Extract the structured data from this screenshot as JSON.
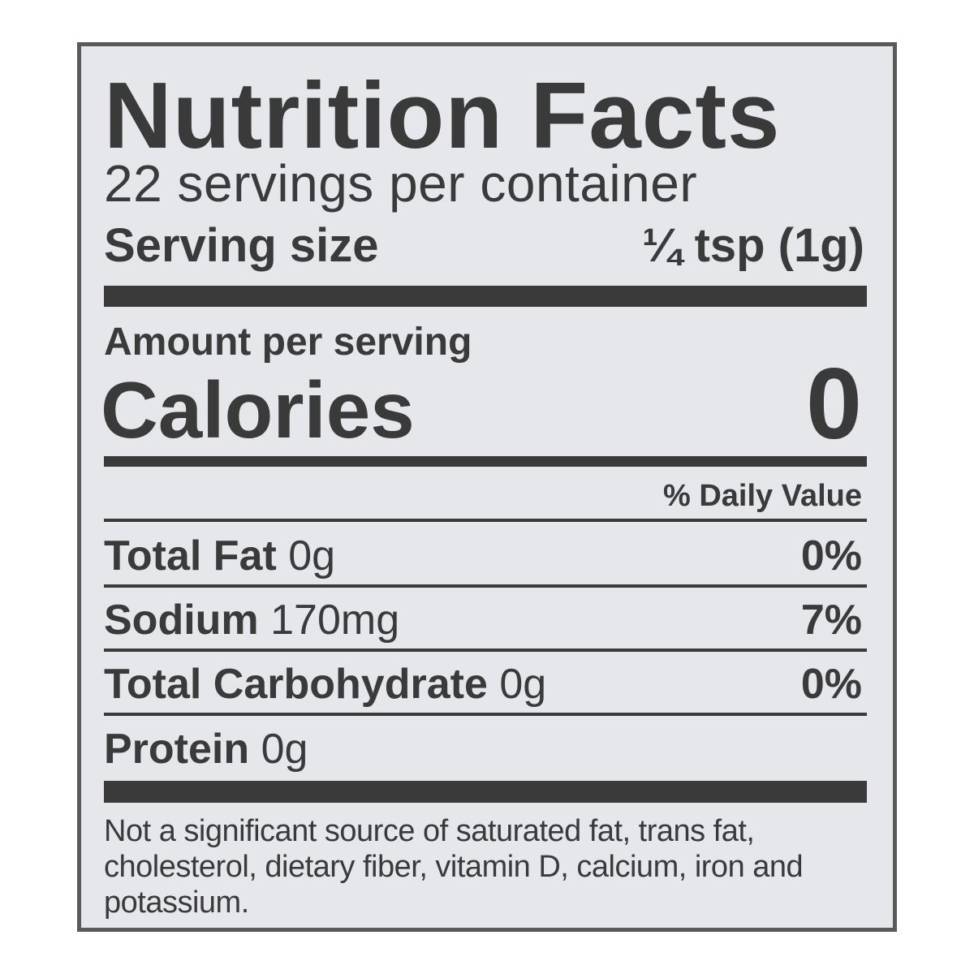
{
  "title": "Nutrition Facts",
  "servings_per_container": "22 servings per container",
  "serving_size": {
    "label": "Serving size",
    "value": "¼ tsp (1g)"
  },
  "amount_per_serving": "Amount per serving",
  "calories": {
    "label": "Calories",
    "value": "0"
  },
  "daily_value_header": "% Daily Value",
  "nutrients": [
    {
      "name": "Total Fat",
      "amount": "0g",
      "dv": "0%"
    },
    {
      "name": "Sodium",
      "amount": "170mg",
      "dv": "7%"
    },
    {
      "name": "Total Carbohydrate",
      "amount": "0g",
      "dv": "0%"
    },
    {
      "name": "Protein",
      "amount": "0g",
      "dv": ""
    }
  ],
  "footnote": "Not a significant source of saturated fat, trans fat, cholesterol, dietary fiber, vitamin D, calcium, iron and potassium."
}
